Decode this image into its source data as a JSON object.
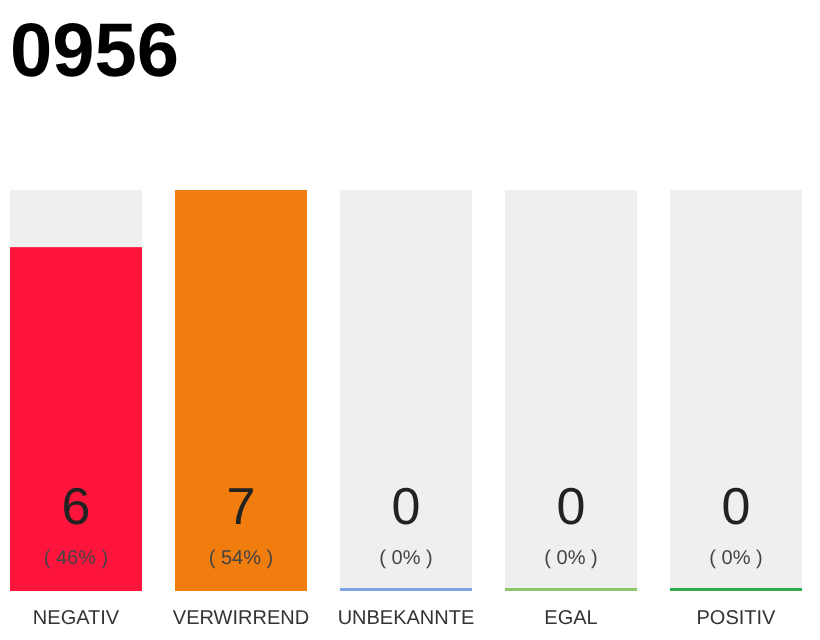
{
  "chart_data": {
    "type": "bar",
    "title": "0956",
    "categories": [
      "NEGATIV",
      "VERWIRREND",
      "UNBEKANNTE",
      "EGAL",
      "POSITIV"
    ],
    "values": [
      6,
      7,
      0,
      0,
      0
    ],
    "colors": [
      "#ff153c",
      "#f07d0e",
      "#7ba3e0",
      "#8cc56a",
      "#2eaa4a"
    ],
    "data_labels": true,
    "annotations": [
      "( 46% )",
      "( 54% )",
      "( 0% )",
      "( 0% )",
      "( 0% )"
    ]
  }
}
